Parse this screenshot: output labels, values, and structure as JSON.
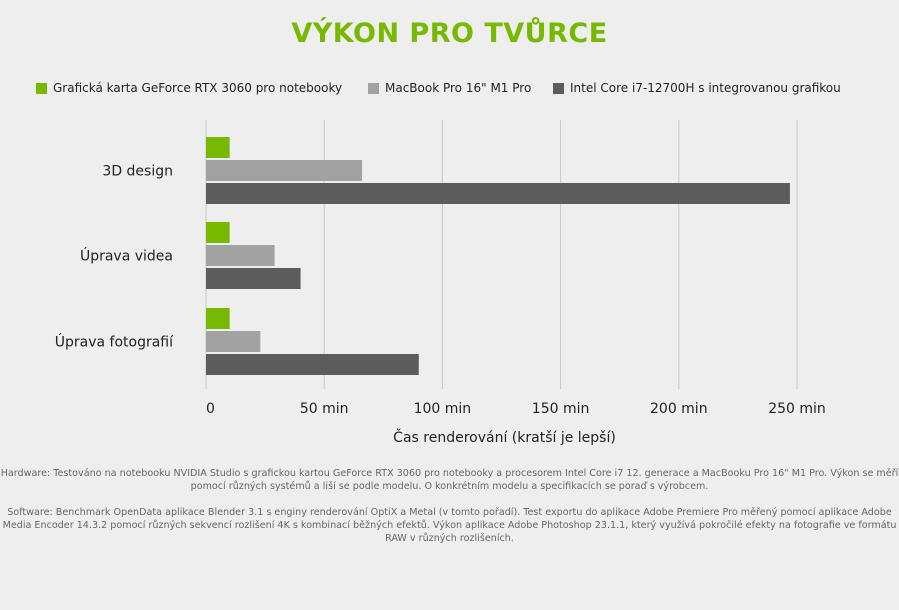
{
  "colors": {
    "accent": "#76b900",
    "series": [
      "#76b900",
      "#a2a2a2",
      "#5c5c5c"
    ],
    "grid": "#c8c8c8",
    "background": "#eeeeee"
  },
  "chart_data": {
    "type": "bar",
    "orientation": "horizontal",
    "title": "VÝKON PRO TVŮRCE",
    "categories": [
      "3D design",
      "Úprava videa",
      "Úprava fotografií"
    ],
    "series": [
      {
        "name": "Grafická karta GeForce RTX 3060 pro notebooky",
        "values": [
          10,
          10,
          10
        ]
      },
      {
        "name": "MacBook Pro 16\" M1 Pro",
        "values": [
          66,
          29,
          23
        ]
      },
      {
        "name": "Intel Core i7-12700H s integrovanou grafikou",
        "values": [
          247,
          40,
          90
        ]
      }
    ],
    "xlabel": "Čas renderování (kratší je lepší)",
    "ylabel": "",
    "xlim": [
      0,
      250
    ],
    "xticks": [
      {
        "value": 0,
        "label": "0"
      },
      {
        "value": 50,
        "label": "50 min"
      },
      {
        "value": 100,
        "label": "100 min"
      },
      {
        "value": 150,
        "label": "150 min"
      },
      {
        "value": 200,
        "label": "200 min"
      },
      {
        "value": 250,
        "label": "250 min"
      }
    ],
    "grid": true,
    "legend_position": "top"
  },
  "notes": [
    "Hardware: Testováno na notebooku NVIDIA Studio s grafickou kartou GeForce RTX 3060 pro notebooky a procesorem Intel Core i7 12. generace a MacBooku Pro 16\" M1 Pro. Výkon se měří pomocí různých systémů a liší se podle modelu. O konkrétním modelu a specifikacích se poraď s výrobcem.",
    "Software: Benchmark OpenData aplikace Blender 3.1 s enginy renderování OptiX a Metal (v tomto pořadí). Test exportu do aplikace Adobe Premiere Pro měřený pomocí aplikace Adobe Media Encoder 14.3.2 pomocí různých sekvencí rozlišení 4K s kombinací běžných efektů. Výkon aplikace Adobe Photoshop 23.1.1, který využívá pokročilé efekty na fotografie ve formátu RAW v různých rozlišeních."
  ]
}
